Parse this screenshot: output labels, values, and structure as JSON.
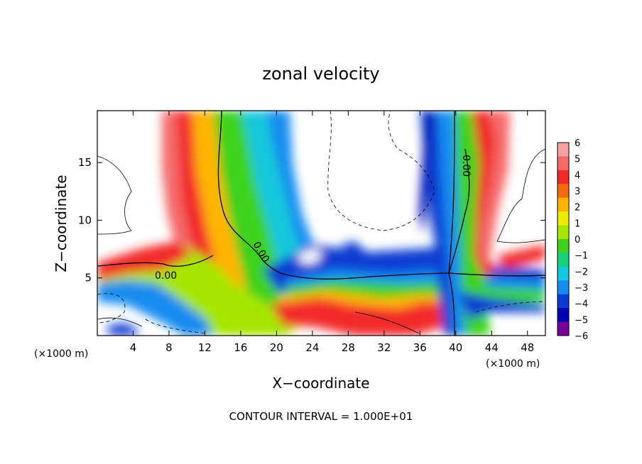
{
  "chart_data": {
    "type": "heatmap",
    "title": "zonal velocity",
    "xlabel": "X−coordinate",
    "ylabel": "Z−coordinate",
    "x_unit_left": "(×1000 m)",
    "x_unit_right": "(×1000 m)",
    "footnote": "CONTOUR INTERVAL = 1.000E+01",
    "xlim": [
      0,
      50
    ],
    "ylim": [
      0,
      19.5
    ],
    "x_ticks": [
      4,
      8,
      12,
      16,
      20,
      24,
      28,
      32,
      36,
      40,
      44,
      48
    ],
    "y_ticks": [
      5,
      10,
      15
    ],
    "colorbar": {
      "labels": [
        "6",
        "5",
        "4",
        "3",
        "2",
        "1",
        "0",
        "−1",
        "−2",
        "−3",
        "−4",
        "−5",
        "−6"
      ],
      "colors": [
        "#f6a0a0",
        "#f46a6a",
        "#f22a2a",
        "#f46a12",
        "#ffb400",
        "#ecec00",
        "#a6e600",
        "#3cd21e",
        "#14d278",
        "#14c8dc",
        "#148cf0",
        "#0a3cd2",
        "#0000b4",
        "#780096"
      ]
    },
    "contour_labels": [
      {
        "text": "0.00",
        "x": 7.2,
        "z": 5.0
      },
      {
        "text": "0.00",
        "x": 18.2,
        "z": 7.3
      },
      {
        "text": "0.00",
        "x": 41.3,
        "z": 14.3
      }
    ]
  }
}
